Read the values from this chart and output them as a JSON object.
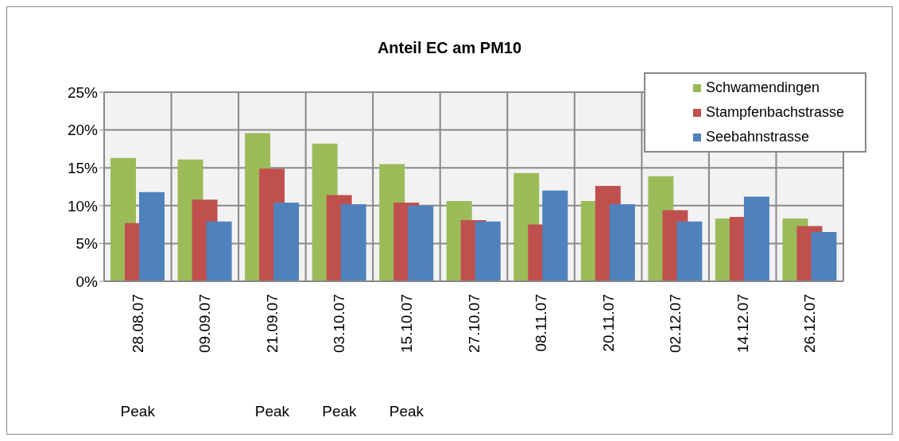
{
  "chart_data": {
    "type": "bar",
    "title": "Anteil EC am PM10",
    "categories": [
      "28.08.07",
      "09.09.07",
      "21.09.07",
      "03.10.07",
      "15.10.07",
      "27.10.07",
      "08.11.07",
      "20.11.07",
      "02.12.07",
      "14.12.07",
      "26.12.07"
    ],
    "series": [
      {
        "name": "Schwamendingen",
        "color": "#9bbb59",
        "values": [
          16.3,
          16.1,
          19.6,
          18.2,
          15.5,
          10.6,
          14.3,
          10.6,
          13.9,
          8.3,
          8.3
        ]
      },
      {
        "name": "Stampfenbachstrasse",
        "color": "#c0504d",
        "values": [
          7.7,
          10.8,
          14.9,
          11.4,
          10.4,
          8.1,
          7.5,
          12.6,
          9.4,
          8.5,
          7.3
        ]
      },
      {
        "name": "Seebahnstrasse",
        "color": "#4f81bd",
        "values": [
          11.8,
          7.9,
          10.4,
          10.2,
          10.0,
          7.9,
          12.0,
          10.2,
          7.9,
          11.2,
          6.5
        ]
      }
    ],
    "ylim": [
      0,
      25
    ],
    "yticks": [
      {
        "value": 0,
        "label": "0%"
      },
      {
        "value": 5,
        "label": "5%"
      },
      {
        "value": 10,
        "label": "10%"
      },
      {
        "value": 15,
        "label": "15%"
      },
      {
        "value": 20,
        "label": "20%"
      },
      {
        "value": 25,
        "label": "25%"
      }
    ],
    "grid": true,
    "legend": "top right",
    "annotations": [
      "Peak",
      "Peak",
      "Peak",
      "Peak"
    ]
  }
}
